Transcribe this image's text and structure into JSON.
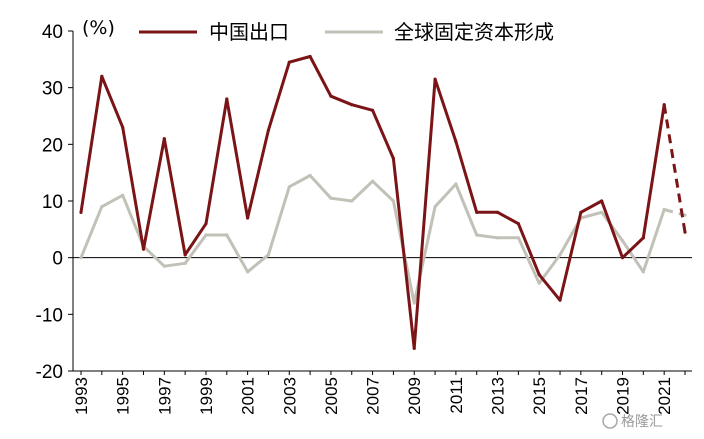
{
  "chart_data": {
    "type": "line",
    "title": "",
    "unit_label": "(%)",
    "xlabel": "",
    "ylabel": "",
    "ylim": [
      -20,
      40
    ],
    "yticks": [
      40,
      30,
      20,
      10,
      0,
      -10,
      -20
    ],
    "x": [
      1993,
      1994,
      1995,
      1996,
      1997,
      1998,
      1999,
      2000,
      2001,
      2002,
      2003,
      2004,
      2005,
      2006,
      2007,
      2008,
      2009,
      2010,
      2011,
      2012,
      2013,
      2014,
      2015,
      2016,
      2017,
      2018,
      2019,
      2020,
      2021,
      2022
    ],
    "xtick_labels": [
      "1993",
      "1995",
      "1997",
      "1999",
      "2001",
      "2003",
      "2005",
      "2007",
      "2009",
      "2011",
      "2013",
      "2015",
      "2017",
      "2019",
      "2021"
    ],
    "forecast_from": 2021,
    "grid": false,
    "legend_position": "top",
    "series": [
      {
        "name": "中国出口",
        "color": "#7b1416",
        "values": [
          8,
          32,
          23,
          1.5,
          21,
          0.5,
          6,
          28,
          7,
          22.5,
          34.5,
          35.5,
          28.5,
          27,
          26,
          17.5,
          -16,
          31.5,
          20.5,
          8,
          8,
          6,
          -3,
          -7.5,
          8,
          10,
          0,
          3.5,
          27,
          4.5
        ]
      },
      {
        "name": "全球固定资本形成",
        "color": "#c2c1b8",
        "values": [
          0,
          9,
          11,
          2,
          -1.5,
          -1,
          4,
          4,
          -2.5,
          0.5,
          12.5,
          14.5,
          10.5,
          10,
          13.5,
          10,
          -8,
          9,
          13,
          4,
          3.5,
          3.5,
          -4.5,
          0.5,
          7,
          8,
          3,
          -2.5,
          8.5,
          7.5
        ]
      }
    ]
  },
  "watermark": "格隆汇"
}
